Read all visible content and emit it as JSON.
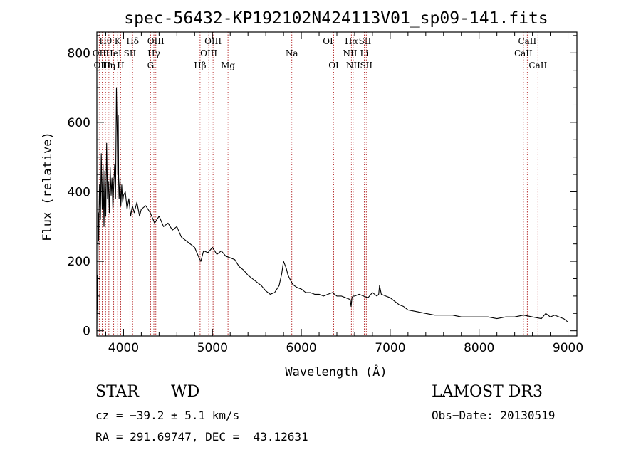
{
  "chart_data": {
    "type": "line",
    "title": "spec-56432-KP192102N424113V01_sp09-141.fits",
    "xlabel": "Wavelength (Å)",
    "ylabel": "Flux (relative)",
    "xlim": [
      3700,
      9100
    ],
    "ylim": [
      -15,
      860
    ],
    "xticks": [
      4000,
      5000,
      6000,
      7000,
      8000,
      9000
    ],
    "yticks": [
      0,
      200,
      400,
      600,
      800
    ],
    "series": [
      {
        "name": "flux",
        "x": [
          3700,
          3705,
          3710,
          3715,
          3720,
          3730,
          3740,
          3750,
          3760,
          3770,
          3780,
          3790,
          3800,
          3810,
          3820,
          3830,
          3840,
          3850,
          3860,
          3870,
          3880,
          3890,
          3900,
          3910,
          3920,
          3930,
          3935,
          3940,
          3945,
          3950,
          3960,
          3970,
          3980,
          3990,
          4000,
          4020,
          4040,
          4060,
          4080,
          4100,
          4120,
          4150,
          4180,
          4200,
          4250,
          4300,
          4350,
          4400,
          4450,
          4500,
          4550,
          4600,
          4650,
          4700,
          4750,
          4800,
          4850,
          4870,
          4900,
          4950,
          5000,
          5050,
          5100,
          5150,
          5200,
          5250,
          5300,
          5350,
          5400,
          5450,
          5500,
          5550,
          5600,
          5650,
          5700,
          5750,
          5780,
          5800,
          5830,
          5850,
          5870,
          5890,
          5900,
          5920,
          5950,
          6000,
          6050,
          6100,
          6150,
          6200,
          6250,
          6300,
          6350,
          6400,
          6450,
          6500,
          6550,
          6560,
          6570,
          6580,
          6600,
          6650,
          6700,
          6750,
          6800,
          6850,
          6870,
          6880,
          6900,
          6950,
          7000,
          7050,
          7100,
          7150,
          7200,
          7300,
          7400,
          7500,
          7600,
          7700,
          7800,
          7900,
          8000,
          8100,
          8200,
          8300,
          8400,
          8500,
          8600,
          8700,
          8750,
          8800,
          8850,
          8900,
          8950,
          9000
        ],
        "y": [
          5,
          160,
          60,
          340,
          260,
          420,
          320,
          510,
          350,
          480,
          300,
          460,
          330,
          540,
          380,
          430,
          340,
          470,
          390,
          440,
          350,
          420,
          480,
          380,
          700,
          560,
          450,
          620,
          430,
          380,
          440,
          360,
          420,
          370,
          390,
          400,
          350,
          380,
          330,
          360,
          340,
          370,
          330,
          350,
          360,
          340,
          310,
          330,
          300,
          310,
          290,
          300,
          270,
          260,
          250,
          240,
          210,
          200,
          230,
          225,
          240,
          220,
          230,
          215,
          210,
          205,
          185,
          175,
          160,
          150,
          140,
          130,
          115,
          105,
          110,
          130,
          165,
          200,
          180,
          160,
          150,
          140,
          135,
          130,
          125,
          120,
          110,
          110,
          105,
          105,
          100,
          105,
          110,
          100,
          100,
          95,
          90,
          70,
          95,
          100,
          100,
          105,
          100,
          95,
          110,
          100,
          105,
          130,
          105,
          100,
          95,
          85,
          75,
          70,
          60,
          55,
          50,
          45,
          45,
          45,
          40,
          40,
          40,
          40,
          35,
          40,
          40,
          45,
          40,
          35,
          50,
          40,
          45,
          40,
          35,
          25
        ]
      }
    ],
    "spectral_lines": [
      {
        "name": "Hθ",
        "wavelength": 3798,
        "row": 1
      },
      {
        "name": "OII",
        "wavelength": 3727,
        "row": 2
      },
      {
        "name": "OIII",
        "wavelength": 3760,
        "row": 3
      },
      {
        "name": "K",
        "wavelength": 3934,
        "row": 1
      },
      {
        "name": "HeI",
        "wavelength": 3889,
        "row": 2
      },
      {
        "name": "Hη",
        "wavelength": 3835,
        "row": 3
      },
      {
        "name": "Hδ",
        "wavelength": 4102,
        "row": 1
      },
      {
        "name": "SII",
        "wavelength": 4072,
        "row": 2
      },
      {
        "name": "H",
        "wavelength": 3968,
        "row": 3
      },
      {
        "name": "OIII",
        "wavelength": 4363,
        "row": 1
      },
      {
        "name": "Hγ",
        "wavelength": 4341,
        "row": 2
      },
      {
        "name": "G",
        "wavelength": 4304,
        "row": 3
      },
      {
        "name": "OIII",
        "wavelength": 5007,
        "row": 1
      },
      {
        "name": "OIII",
        "wavelength": 4959,
        "row": 2
      },
      {
        "name": "Hβ",
        "wavelength": 4861,
        "row": 3
      },
      {
        "name": "Mg",
        "wavelength": 5175,
        "row": 3
      },
      {
        "name": "Na",
        "wavelength": 5893,
        "row": 2
      },
      {
        "name": "OI",
        "wavelength": 6300,
        "row": 1
      },
      {
        "name": "OI",
        "wavelength": 6364,
        "row": 3
      },
      {
        "name": "Hα",
        "wavelength": 6563,
        "row": 1
      },
      {
        "name": "NII",
        "wavelength": 6548,
        "row": 2
      },
      {
        "name": "NII",
        "wavelength": 6583,
        "row": 3
      },
      {
        "name": "SII",
        "wavelength": 6716,
        "row": 1
      },
      {
        "name": "Li",
        "wavelength": 6708,
        "row": 2
      },
      {
        "name": "SII",
        "wavelength": 6731,
        "row": 3
      },
      {
        "name": "CaII",
        "wavelength": 8542,
        "row": 1
      },
      {
        "name": "CaII",
        "wavelength": 8498,
        "row": 2
      },
      {
        "name": "CaII",
        "wavelength": 8662,
        "row": 3
      }
    ]
  },
  "info": {
    "class": "STAR",
    "subclass": "WD",
    "cz": "cz = −39.2 ± 5.1 km/s",
    "coords": "RA = 291.69747, DEC =  43.12631",
    "survey": "LAMOST DR3",
    "obs_date": "Obs−Date: 20130519"
  },
  "colors": {
    "line_marker": "#b22222",
    "spectrum": "#000000"
  }
}
